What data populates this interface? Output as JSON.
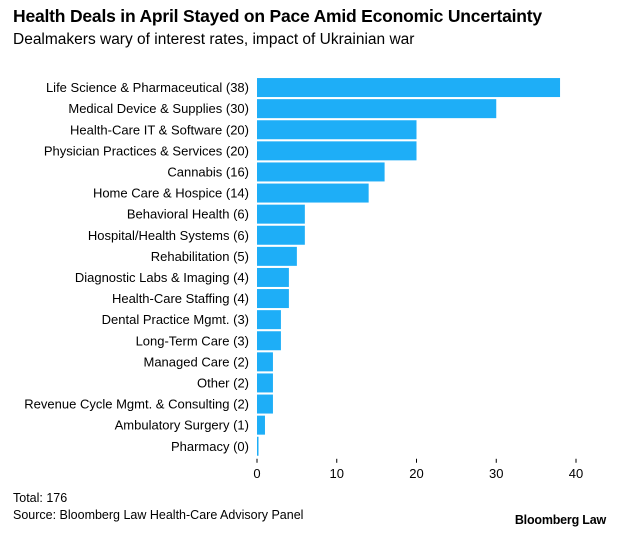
{
  "header": {
    "title": "Health Deals in April Stayed on Pace Amid Economic Uncertainty",
    "subtitle": "Dealmakers wary of interest rates, impact of Ukrainian war"
  },
  "footer": {
    "total": "Total: 176",
    "source": "Source: Bloomberg Law Health-Care Advisory Panel",
    "brand": "Bloomberg Law"
  },
  "colors": {
    "bar": "#1EAEF7",
    "text": "#000000",
    "axis": "#000000"
  },
  "chart_data": {
    "type": "bar",
    "orientation": "horizontal",
    "categories": [
      "Life Science & Pharmaceutical (38)",
      "Medical Device & Supplies (30)",
      "Health-Care IT & Software (20)",
      "Physician Practices & Services (20)",
      "Cannabis (16)",
      "Home Care & Hospice (14)",
      "Behavioral Health (6)",
      "Hospital/Health Systems (6)",
      "Rehabilitation (5)",
      "Diagnostic Labs & Imaging (4)",
      "Health-Care Staffing (4)",
      "Dental Practice Mgmt. (3)",
      "Long-Term Care (3)",
      "Managed Care (2)",
      "Other (2)",
      "Revenue Cycle Mgmt. & Consulting (2)",
      "Ambulatory Surgery (1)",
      "Pharmacy (0)"
    ],
    "values": [
      38,
      30,
      20,
      20,
      16,
      14,
      6,
      6,
      5,
      4,
      4,
      3,
      3,
      2,
      2,
      2,
      1,
      0
    ],
    "xlim": [
      0,
      40
    ],
    "xticks": [
      "0",
      "10",
      "20",
      "30",
      "40"
    ],
    "title": "Health Deals in April Stayed on Pace Amid Economic Uncertainty",
    "subtitle": "Dealmakers wary of interest rates, impact of Ukrainian war",
    "grid": false,
    "legend": "none"
  }
}
